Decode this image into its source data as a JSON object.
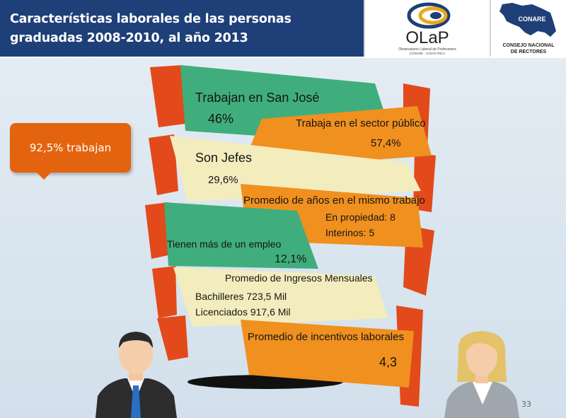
{
  "header": {
    "title_line1": "Características laborales de las personas",
    "title_line2": "graduadas 2008-2010, al año 2013",
    "olap_logo_text": "OLaP",
    "olap_sub1": "Observatorio Laboral de Profesiones",
    "olap_sub2": "CONARE · COSTA RICA",
    "conare_map_text": "CONARE",
    "conare_line1": "CONSEJO NACIONAL",
    "conare_line2": "DE RECTORES"
  },
  "badge": {
    "text": "92,5% trabajan"
  },
  "ribbons": {
    "san_jose": {
      "label": "Trabajan en San José",
      "value": "46%"
    },
    "sector_publico": {
      "label": "Trabaja en el sector público",
      "value": "57,4%"
    },
    "jefes": {
      "label": "Son Jefes",
      "value": "29,6%"
    },
    "anos_trabajo": {
      "label": "Promedio de años en el mismo trabajo",
      "line1": "En propiedad: 8",
      "line2": "Interinos: 5"
    },
    "mas_empleo": {
      "label": "Tienen más de un empleo",
      "value": "12,1%"
    },
    "ingresos": {
      "label": "Promedio de Ingresos Mensuales",
      "line1": "Bachilleres 723,5 Mil",
      "line2": "Licenciados 917,6 Mil"
    },
    "incentivos": {
      "label": "Promedio de incentivos laborales",
      "value": "4,3"
    }
  },
  "colors": {
    "orange": "#f0901e",
    "red": "#e24a1b",
    "green": "#3fae7c",
    "cream": "#f3ecbd",
    "navy": "#1e3f77"
  },
  "page_number": "33"
}
